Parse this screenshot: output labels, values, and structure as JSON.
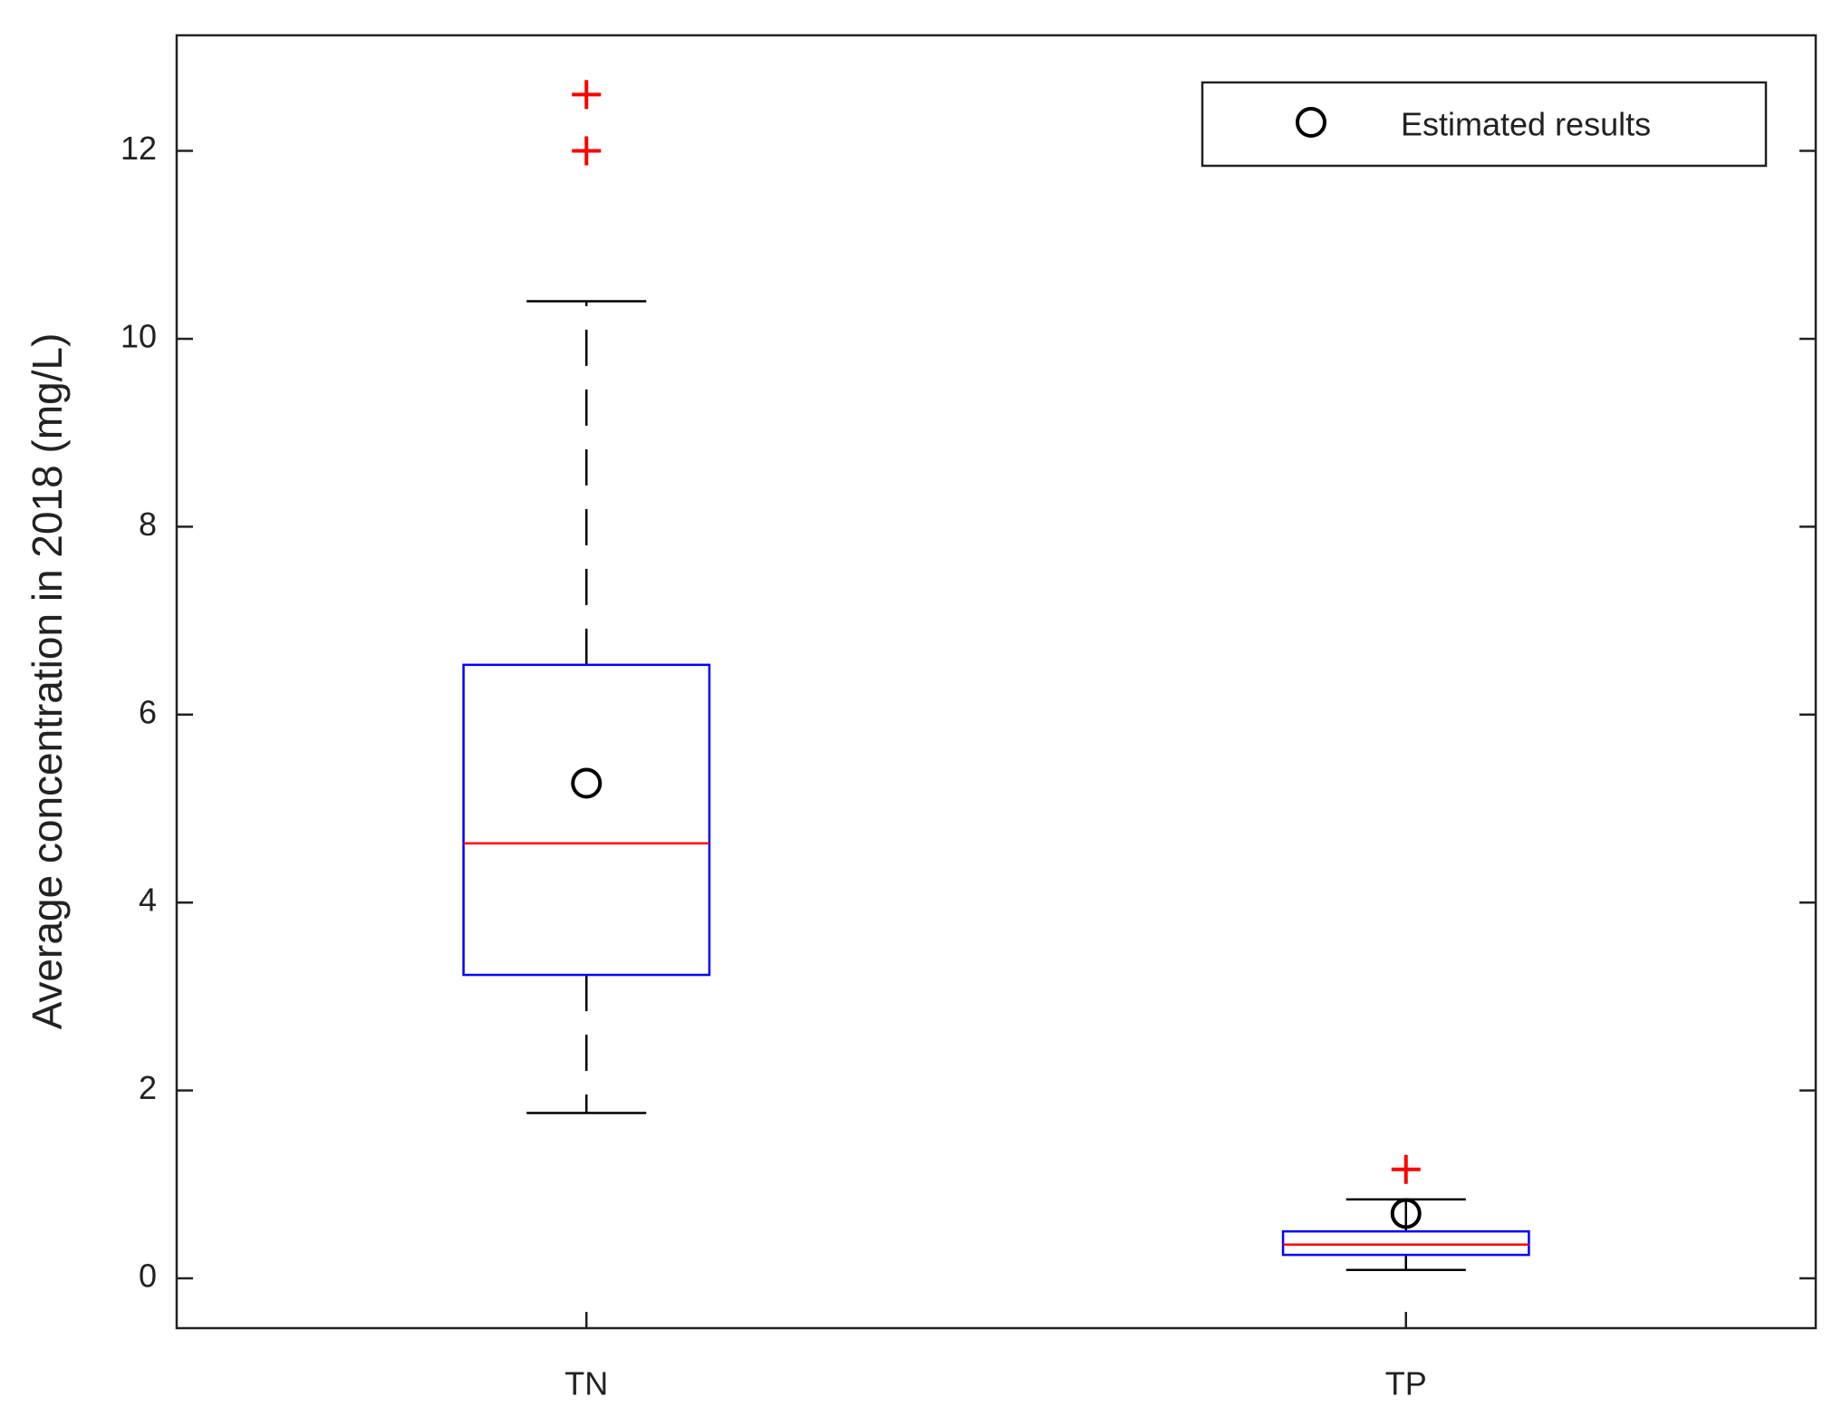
{
  "chart_data": {
    "type": "box",
    "y_label": "Average concentration in 2018 (mg/L)",
    "categories": [
      "TN",
      "TP"
    ],
    "boxes": [
      {
        "whisker_low": 1.76,
        "q1": 3.23,
        "median": 4.63,
        "q3": 6.53,
        "whisker_high": 10.4,
        "outliers": [
          12.0,
          12.6
        ]
      },
      {
        "whisker_low": 0.09,
        "q1": 0.25,
        "median": 0.36,
        "q3": 0.5,
        "whisker_high": 0.84,
        "outliers": [
          1.16
        ]
      }
    ],
    "box_color": "#0000ff",
    "median_color": "#ff0000",
    "outlier_color": "#ff0000",
    "whisker_color": "#000000",
    "estimated": {
      "name": "Estimated results",
      "color": "#000000",
      "values": [
        5.27,
        0.69
      ]
    },
    "ylim": [
      -0.53,
      13.23
    ],
    "yticks": [
      0,
      2,
      4,
      6,
      8,
      10,
      12
    ],
    "legend": "upper-right",
    "grid": false
  }
}
